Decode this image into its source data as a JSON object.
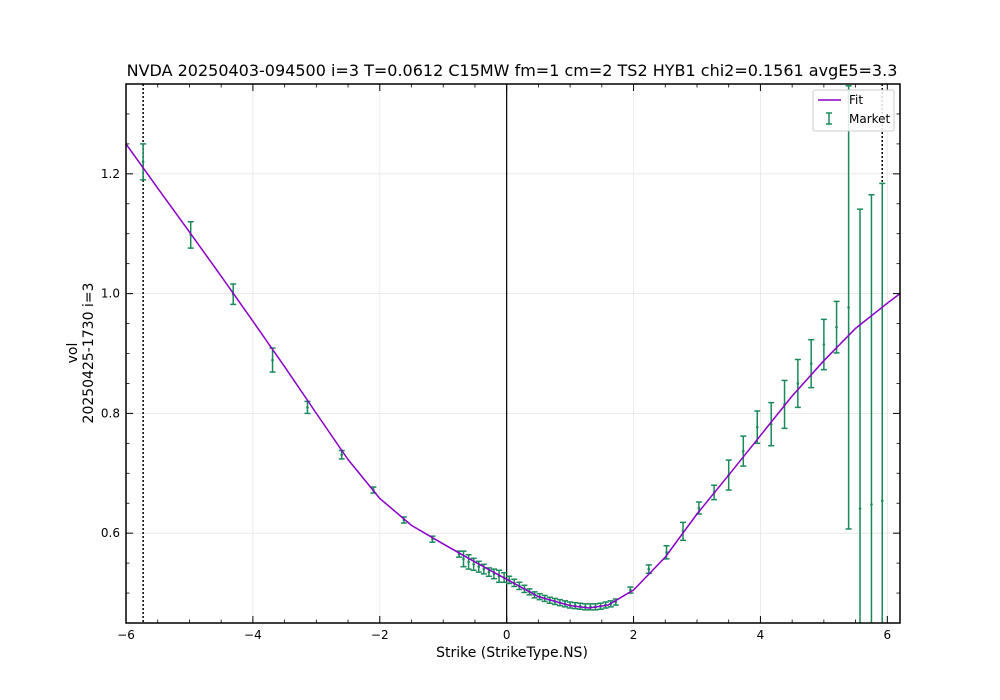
{
  "chart_data": {
    "type": "line",
    "title": "NVDA 20250403-094500 i=3 T=0.0612 C15MW fm=1 cm=2 TS2 HYB1 chi2=0.1561 avgE5=3.3",
    "xlabel": "Strike (StrikeType.NS)",
    "ylabel_line1": "vol",
    "ylabel_line2": "20250425-1730 i=3",
    "xlim": [
      -6.0,
      6.2
    ],
    "ylim": [
      0.45,
      1.35
    ],
    "xticks": [
      -6,
      -4,
      -2,
      0,
      2,
      4,
      6
    ],
    "xtick_labels": [
      "−6",
      "−4",
      "−2",
      "0",
      "2",
      "4",
      "6"
    ],
    "yticks": [
      0.6,
      0.8,
      1.0,
      1.2
    ],
    "ytick_labels": [
      "0.6",
      "0.8",
      "1.0",
      "1.2"
    ],
    "grid": true,
    "legend_position": "top-right",
    "vlines": [
      {
        "x": 0.0,
        "style": "solid"
      },
      {
        "x": -5.73,
        "style": "dotted"
      },
      {
        "x": 5.92,
        "style": "dotted"
      }
    ],
    "series": [
      {
        "name": "Fit",
        "kind": "line",
        "color": "#8a00c8",
        "x": [
          -6.0,
          -5.5,
          -5.0,
          -4.5,
          -4.0,
          -3.5,
          -3.0,
          -2.5,
          -2.0,
          -1.5,
          -1.0,
          -0.5,
          0.0,
          0.5,
          1.0,
          1.3,
          1.6,
          2.0,
          2.5,
          3.0,
          3.5,
          4.0,
          4.5,
          5.0,
          5.5,
          6.0,
          6.2
        ],
        "y": [
          1.25,
          1.176,
          1.103,
          1.029,
          0.954,
          0.878,
          0.8,
          0.723,
          0.658,
          0.613,
          0.582,
          0.552,
          0.523,
          0.494,
          0.479,
          0.475,
          0.48,
          0.505,
          0.56,
          0.632,
          0.697,
          0.763,
          0.829,
          0.888,
          0.942,
          0.984,
          1.0
        ]
      },
      {
        "name": "Market",
        "kind": "errorbar",
        "color": "#1a8a5a",
        "x": [
          -5.73,
          -4.98,
          -4.31,
          -3.69,
          -3.14,
          -2.6,
          -2.1,
          -1.62,
          -1.17,
          -0.75,
          -0.68,
          -0.6,
          -0.52,
          -0.44,
          -0.36,
          -0.28,
          -0.2,
          -0.12,
          -0.04,
          0.04,
          0.12,
          0.2,
          0.28,
          0.36,
          0.44,
          0.52,
          0.6,
          0.68,
          0.76,
          0.84,
          0.92,
          1.0,
          1.08,
          1.16,
          1.24,
          1.32,
          1.4,
          1.48,
          1.56,
          1.64,
          1.72,
          1.95,
          2.24,
          2.52,
          2.78,
          3.03,
          3.27,
          3.5,
          3.73,
          3.95,
          4.17,
          4.38,
          4.59,
          4.8,
          5.0,
          5.2,
          5.39,
          5.57,
          5.75,
          5.92
        ],
        "y": [
          1.22,
          1.098,
          0.999,
          0.889,
          0.81,
          0.731,
          0.672,
          0.622,
          0.59,
          0.565,
          0.557,
          0.552,
          0.548,
          0.544,
          0.54,
          0.535,
          0.532,
          0.528,
          0.526,
          0.522,
          0.517,
          0.512,
          0.507,
          0.502,
          0.497,
          0.494,
          0.491,
          0.488,
          0.486,
          0.484,
          0.482,
          0.48,
          0.479,
          0.478,
          0.477,
          0.477,
          0.477,
          0.478,
          0.48,
          0.482,
          0.485,
          0.505,
          0.54,
          0.568,
          0.603,
          0.642,
          0.668,
          0.697,
          0.737,
          0.777,
          0.782,
          0.815,
          0.85,
          0.883,
          0.915,
          0.944,
          0.977,
          0.641,
          0.648,
          0.654
        ],
        "err": [
          0.03,
          0.022,
          0.017,
          0.02,
          0.01,
          0.007,
          0.005,
          0.005,
          0.005,
          0.005,
          0.013,
          0.012,
          0.01,
          0.009,
          0.008,
          0.007,
          0.008,
          0.01,
          0.008,
          0.006,
          0.006,
          0.006,
          0.006,
          0.005,
          0.005,
          0.005,
          0.005,
          0.005,
          0.005,
          0.005,
          0.005,
          0.005,
          0.005,
          0.005,
          0.005,
          0.005,
          0.005,
          0.005,
          0.005,
          0.005,
          0.005,
          0.005,
          0.007,
          0.011,
          0.015,
          0.01,
          0.012,
          0.025,
          0.025,
          0.027,
          0.036,
          0.04,
          0.04,
          0.04,
          0.042,
          0.043,
          0.37,
          0.5,
          0.517,
          0.53
        ]
      }
    ]
  }
}
